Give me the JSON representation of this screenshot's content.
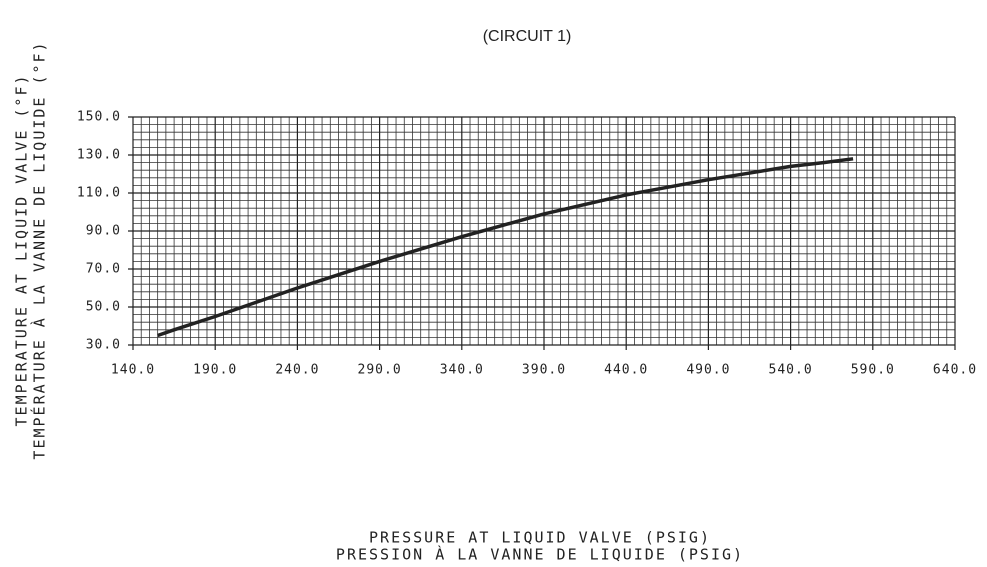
{
  "chart_data": {
    "type": "line",
    "title": "(CIRCUIT 1)",
    "x_label": [
      "PRESSURE AT LIQUID VALVE (PSIG)",
      "PRESSION À LA VANNE DE LIQUIDE (PSIG)"
    ],
    "y_label": [
      "TEMPERATURE AT LIQUID VALVE (°F)",
      "TEMPÉRATURE À LA VANNE DE LIQUIDE (°F)"
    ],
    "x": [
      155,
      165,
      190,
      215,
      240,
      265,
      290,
      315,
      340,
      365,
      390,
      415,
      440,
      465,
      490,
      515,
      540,
      560,
      578
    ],
    "series": [
      {
        "name": "Circuit 1",
        "color": "#222222",
        "values": [
          35,
          38,
          45,
          52.5,
          60,
          67,
          74,
          80.5,
          87,
          93,
          99,
          104,
          109,
          113,
          117,
          120.5,
          124,
          126,
          128
        ]
      }
    ],
    "xlim": [
      140,
      640
    ],
    "xticks": [
      {
        "value": 140,
        "label": "140.0"
      },
      {
        "value": 190,
        "label": "190.0"
      },
      {
        "value": 240,
        "label": "240.0"
      },
      {
        "value": 290,
        "label": "290.0"
      },
      {
        "value": 340,
        "label": "340.0"
      },
      {
        "value": 390,
        "label": "390.0"
      },
      {
        "value": 440,
        "label": "440.0"
      },
      {
        "value": 490,
        "label": "490.0"
      },
      {
        "value": 540,
        "label": "540.0"
      },
      {
        "value": 590,
        "label": "590.0"
      },
      {
        "value": 640,
        "label": "640.0"
      }
    ],
    "ylim": [
      30,
      150
    ],
    "yticks": [
      {
        "value": 30,
        "label": "30.0"
      },
      {
        "value": 50,
        "label": "50.0"
      },
      {
        "value": 70,
        "label": "70.0"
      },
      {
        "value": 90,
        "label": "90.0"
      },
      {
        "value": 110,
        "label": "110.0"
      },
      {
        "value": 130,
        "label": "130.0"
      },
      {
        "value": 150,
        "label": "150.0"
      }
    ],
    "minor_xticks": [
      145,
      150,
      155,
      160,
      165,
      170,
      175,
      180,
      185,
      195,
      200,
      205,
      210,
      215,
      220,
      225,
      230,
      235,
      245,
      250,
      255,
      260,
      265,
      270,
      275,
      280,
      285,
      295,
      300,
      305,
      310,
      315,
      320,
      325,
      330,
      335,
      345,
      350,
      355,
      360,
      365,
      370,
      375,
      380,
      385,
      395,
      400,
      405,
      410,
      415,
      420,
      425,
      430,
      435,
      445,
      450,
      455,
      460,
      465,
      470,
      475,
      480,
      485,
      495,
      500,
      505,
      510,
      515,
      520,
      525,
      530,
      535,
      545,
      550,
      555,
      560,
      565,
      570,
      575,
      580,
      585,
      595,
      600,
      605,
      610,
      615,
      620,
      625,
      630,
      635
    ],
    "minor_yticks": [
      34,
      38,
      42,
      46,
      54,
      58,
      62,
      66,
      74,
      78,
      82,
      86,
      94,
      98,
      102,
      106,
      114,
      118,
      122,
      126,
      134,
      138,
      142,
      146
    ],
    "grid": true
  }
}
